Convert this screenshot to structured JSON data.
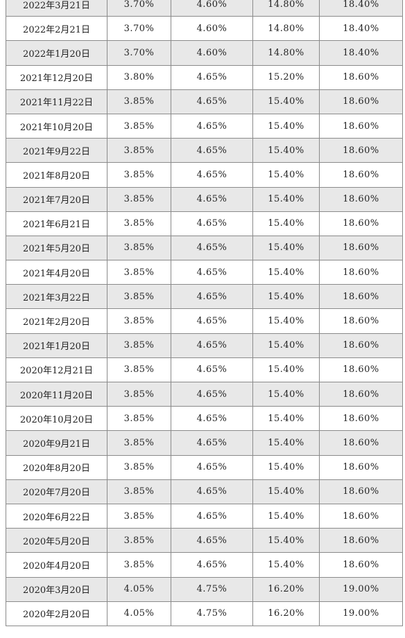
{
  "rows": [
    {
      "date": "2022年3月21日",
      "r1": "3.70%",
      "r2": "4.60%",
      "r3": "14.80%",
      "r4": "18.40%"
    },
    {
      "date": "2022年2月21日",
      "r1": "3.70%",
      "r2": "4.60%",
      "r3": "14.80%",
      "r4": "18.40%"
    },
    {
      "date": "2022年1月20日",
      "r1": "3.70%",
      "r2": "4.60%",
      "r3": "14.80%",
      "r4": "18.40%"
    },
    {
      "date": "2021年12月20日",
      "r1": "3.80%",
      "r2": "4.65%",
      "r3": "15.20%",
      "r4": "18.60%"
    },
    {
      "date": "2021年11月22日",
      "r1": "3.85%",
      "r2": "4.65%",
      "r3": "15.40%",
      "r4": "18.60%"
    },
    {
      "date": "2021年10月20日",
      "r1": "3.85%",
      "r2": "4.65%",
      "r3": "15.40%",
      "r4": "18.60%"
    },
    {
      "date": "2021年9月22日",
      "r1": "3.85%",
      "r2": "4.65%",
      "r3": "15.40%",
      "r4": "18.60%"
    },
    {
      "date": "2021年8月20日",
      "r1": "3.85%",
      "r2": "4.65%",
      "r3": "15.40%",
      "r4": "18.60%"
    },
    {
      "date": "2021年7月20日",
      "r1": "3.85%",
      "r2": "4.65%",
      "r3": "15.40%",
      "r4": "18.60%"
    },
    {
      "date": "2021年6月21日",
      "r1": "3.85%",
      "r2": "4.65%",
      "r3": "15.40%",
      "r4": "18.60%"
    },
    {
      "date": "2021年5月20日",
      "r1": "3.85%",
      "r2": "4.65%",
      "r3": "15.40%",
      "r4": "18.60%"
    },
    {
      "date": "2021年4月20日",
      "r1": "3.85%",
      "r2": "4.65%",
      "r3": "15.40%",
      "r4": "18.60%"
    },
    {
      "date": "2021年3月22日",
      "r1": "3.85%",
      "r2": "4.65%",
      "r3": "15.40%",
      "r4": "18.60%"
    },
    {
      "date": "2021年2月20日",
      "r1": "3.85%",
      "r2": "4.65%",
      "r3": "15.40%",
      "r4": "18.60%"
    },
    {
      "date": "2021年1月20日",
      "r1": "3.85%",
      "r2": "4.65%",
      "r3": "15.40%",
      "r4": "18.60%"
    },
    {
      "date": "2020年12月21日",
      "r1": "3.85%",
      "r2": "4.65%",
      "r3": "15.40%",
      "r4": "18.60%"
    },
    {
      "date": "2020年11月20日",
      "r1": "3.85%",
      "r2": "4.65%",
      "r3": "15.40%",
      "r4": "18.60%"
    },
    {
      "date": "2020年10月20日",
      "r1": "3.85%",
      "r2": "4.65%",
      "r3": "15.40%",
      "r4": "18.60%"
    },
    {
      "date": "2020年9月21日",
      "r1": "3.85%",
      "r2": "4.65%",
      "r3": "15.40%",
      "r4": "18.60%"
    },
    {
      "date": "2020年8月20日",
      "r1": "3.85%",
      "r2": "4.65%",
      "r3": "15.40%",
      "r4": "18.60%"
    },
    {
      "date": "2020年7月20日",
      "r1": "3.85%",
      "r2": "4.65%",
      "r3": "15.40%",
      "r4": "18.60%"
    },
    {
      "date": "2020年6月22日",
      "r1": "3.85%",
      "r2": "4.65%",
      "r3": "15.40%",
      "r4": "18.60%"
    },
    {
      "date": "2020年5月20日",
      "r1": "3.85%",
      "r2": "4.65%",
      "r3": "15.40%",
      "r4": "18.60%"
    },
    {
      "date": "2020年4月20日",
      "r1": "3.85%",
      "r2": "4.65%",
      "r3": "15.40%",
      "r4": "18.60%"
    },
    {
      "date": "2020年3月20日",
      "r1": "4.05%",
      "r2": "4.75%",
      "r3": "16.20%",
      "r4": "19.00%"
    },
    {
      "date": "2020年2月20日",
      "r1": "4.05%",
      "r2": "4.75%",
      "r3": "16.20%",
      "r4": "19.00%"
    }
  ]
}
